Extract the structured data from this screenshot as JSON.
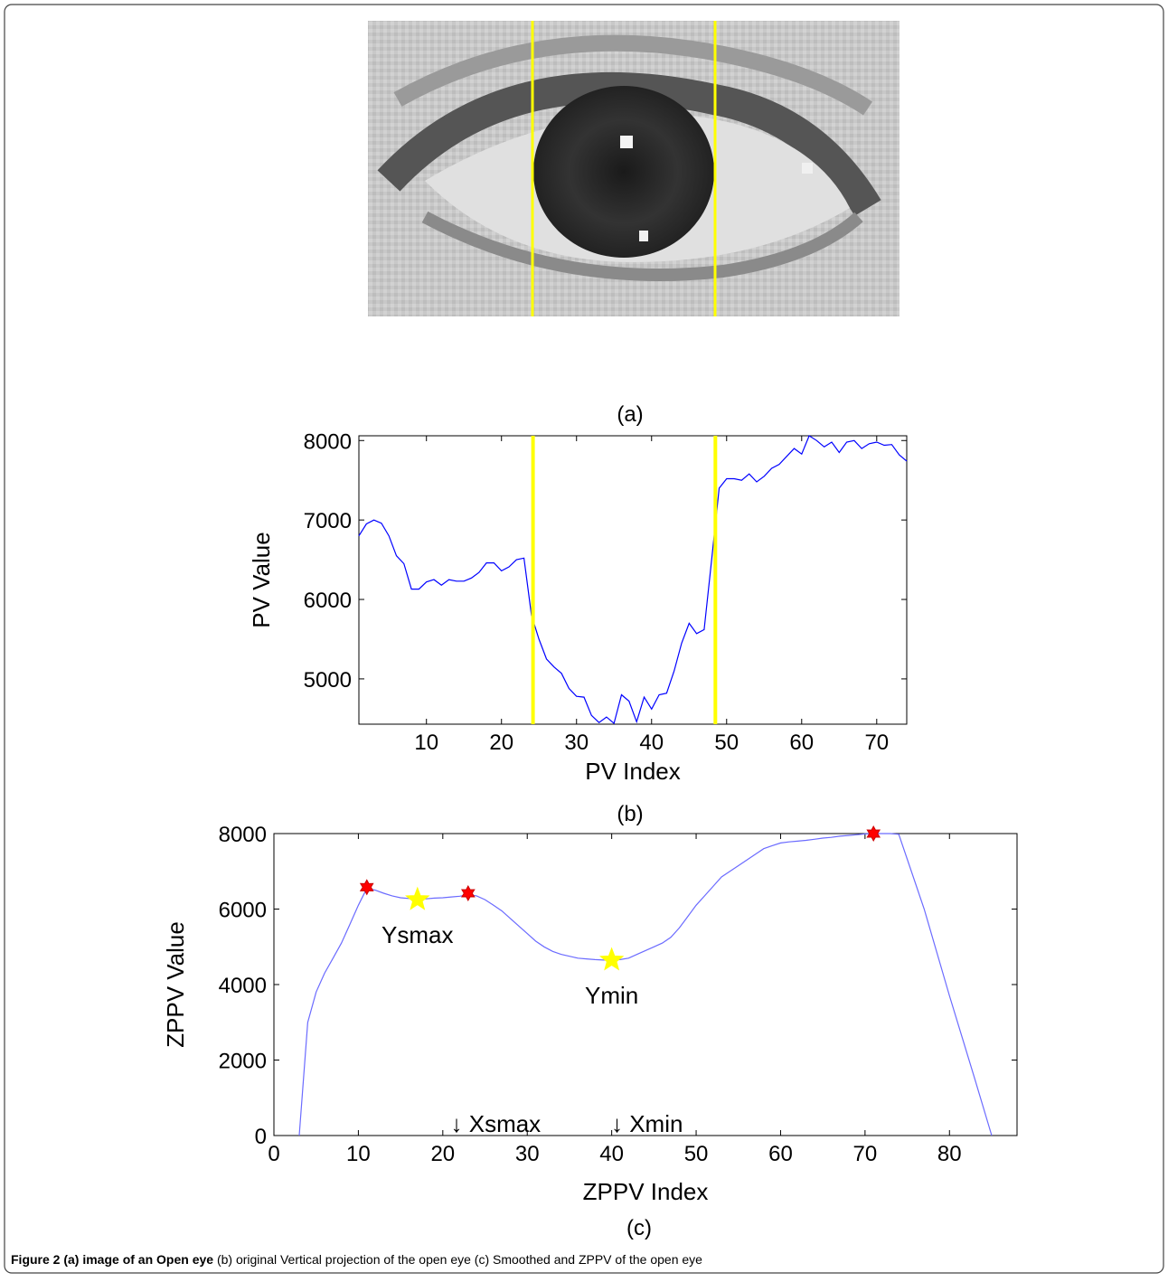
{
  "panels": [
    "(a)",
    "(b)",
    "(c)"
  ],
  "caption": {
    "bold": "Figure 2 (a) image of an Open eye",
    "text": " (b) original Vertical projection of the open eye (c) Smoothed and ZPPV of the open eye"
  },
  "chart_data": [
    {
      "type": "line",
      "xlabel": "PV Index",
      "ylabel": "PV Value",
      "xlim": [
        1,
        74
      ],
      "ylim": [
        4430,
        8060
      ],
      "xticks": [
        10,
        20,
        30,
        40,
        50,
        60,
        70
      ],
      "yticks": [
        5000,
        6000,
        7000,
        8000
      ],
      "x": [
        1,
        2,
        3,
        4,
        5,
        6,
        7,
        8,
        9,
        10,
        11,
        12,
        13,
        14,
        15,
        16,
        17,
        18,
        19,
        20,
        21,
        22,
        23,
        24,
        25,
        26,
        27,
        28,
        29,
        30,
        31,
        32,
        33,
        34,
        35,
        36,
        37,
        38,
        39,
        40,
        41,
        42,
        43,
        44,
        45,
        46,
        47,
        48,
        49,
        50,
        51,
        52,
        53,
        54,
        55,
        56,
        57,
        58,
        59,
        60,
        61,
        62,
        63,
        64,
        65,
        66,
        67,
        68,
        69,
        70,
        71,
        72,
        73,
        74
      ],
      "series": [
        {
          "color": "#0000ff",
          "values": [
            6800,
            6950,
            7000,
            6960,
            6800,
            6550,
            6450,
            6130,
            6130,
            6220,
            6250,
            6180,
            6250,
            6230,
            6230,
            6270,
            6340,
            6460,
            6460,
            6360,
            6410,
            6500,
            6520,
            5800,
            5500,
            5250,
            5150,
            5070,
            4880,
            4780,
            4770,
            4540,
            4450,
            4520,
            4440,
            4800,
            4720,
            4460,
            4770,
            4620,
            4800,
            4820,
            5100,
            5450,
            5700,
            5570,
            5620,
            6500,
            7400,
            7520,
            7520,
            7500,
            7580,
            7480,
            7550,
            7650,
            7700,
            7800,
            7900,
            7830,
            8060,
            8000,
            7920,
            7980,
            7850,
            7980,
            8000,
            7900,
            7960,
            7980,
            7940,
            7950,
            7820,
            7740
          ]
        }
      ],
      "vlines": {
        "color": "#ffff00",
        "x": [
          24.2,
          48.5
        ]
      }
    },
    {
      "type": "line",
      "xlabel": "ZPPV Index",
      "ylabel": "ZPPV Value",
      "xlim": [
        0,
        88
      ],
      "ylim": [
        0,
        8000
      ],
      "xticks": [
        0,
        10,
        20,
        30,
        40,
        50,
        60,
        70,
        80
      ],
      "yticks": [
        0,
        2000,
        4000,
        6000,
        8000
      ],
      "x": [
        3,
        4,
        5,
        6,
        7,
        8,
        9,
        10,
        11,
        12,
        13,
        14,
        15,
        16,
        17,
        18,
        19,
        20,
        21,
        22,
        23,
        24,
        25,
        26,
        27,
        28,
        29,
        30,
        31,
        32,
        33,
        34,
        35,
        36,
        37,
        38,
        39,
        40,
        41,
        42,
        43,
        44,
        45,
        46,
        47,
        48,
        49,
        50,
        51,
        52,
        53,
        54,
        55,
        56,
        57,
        58,
        59,
        60,
        61,
        62,
        63,
        64,
        65,
        66,
        67,
        68,
        69,
        70,
        71,
        72,
        73,
        74,
        77,
        80,
        83,
        85
      ],
      "series": [
        {
          "color": "#6b6bff",
          "values": [
            0,
            3000,
            3800,
            4300,
            4700,
            5100,
            5600,
            6100,
            6550,
            6500,
            6420,
            6350,
            6300,
            6280,
            6250,
            6270,
            6290,
            6300,
            6320,
            6340,
            6380,
            6350,
            6250,
            6100,
            5950,
            5750,
            5550,
            5350,
            5150,
            5000,
            4880,
            4800,
            4750,
            4700,
            4680,
            4660,
            4650,
            4650,
            4660,
            4700,
            4800,
            4900,
            5000,
            5100,
            5250,
            5500,
            5800,
            6100,
            6350,
            6600,
            6850,
            7000,
            7150,
            7300,
            7450,
            7600,
            7680,
            7750,
            7780,
            7800,
            7820,
            7850,
            7880,
            7900,
            7930,
            7950,
            7970,
            7990,
            8000,
            8000,
            8000,
            7980,
            6000,
            3700,
            1500,
            0
          ]
        }
      ],
      "markers": [
        {
          "shape": "hexagram",
          "color": "#ff0000",
          "x": [
            11,
            23,
            71
          ],
          "y": [
            6580,
            6420,
            8000
          ]
        },
        {
          "shape": "star",
          "color": "#ffff00",
          "x": [
            17,
            40
          ],
          "y": [
            6250,
            4650
          ],
          "labels": [
            "Ysmax",
            "Ymin"
          ]
        }
      ],
      "x_markers": {
        "x": [
          22,
          41
        ],
        "labels": [
          "↓ Xsmax",
          "↓ Xmin"
        ]
      }
    }
  ]
}
